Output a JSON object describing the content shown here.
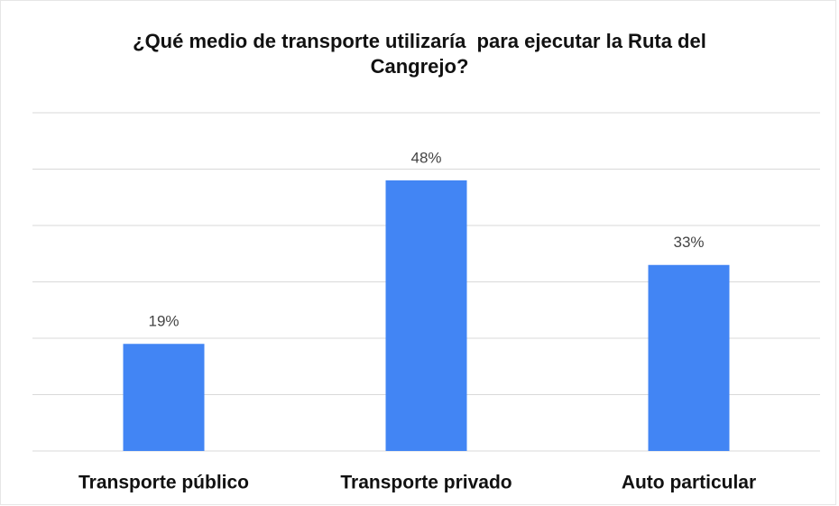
{
  "chart_data": {
    "type": "bar",
    "title": "¿Qué medio de transporte utilizaría  para ejecutar la Ruta del Cangrejo?",
    "categories": [
      "Transporte público",
      "Transporte privado",
      "Auto particular"
    ],
    "values": [
      19,
      48,
      33
    ],
    "value_labels": [
      "19%",
      "48%",
      "33%"
    ],
    "color": "#4285f4",
    "ylim": [
      0,
      60
    ],
    "yticks": [
      0,
      10,
      20,
      30,
      40,
      50,
      60
    ],
    "grid": true
  }
}
